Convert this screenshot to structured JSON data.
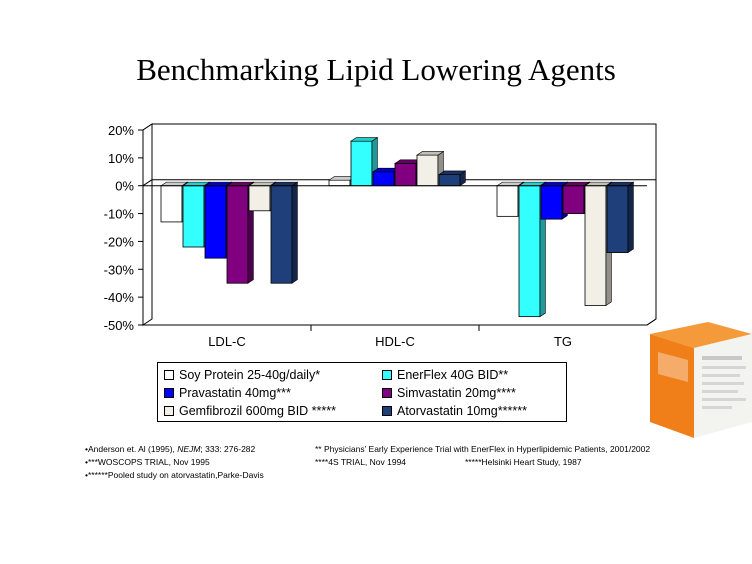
{
  "title": "Benchmarking Lipid Lowering Agents",
  "chart_data": {
    "type": "bar",
    "categories": [
      "LDL-C",
      "HDL-C",
      "TG"
    ],
    "ylim": [
      -50,
      20
    ],
    "yticks": [
      20,
      10,
      0,
      -10,
      -20,
      -30,
      -40,
      -50
    ],
    "ytick_labels": [
      "20%",
      "10%",
      "0%",
      "-10%",
      "-20%",
      "-30%",
      "-40%",
      "-50%"
    ],
    "series": [
      {
        "name": "Soy Protein 25-40g/daily*",
        "color": "#ffffff",
        "values": [
          -13,
          2,
          -11
        ]
      },
      {
        "name": "EnerFlex 40G BID**",
        "color": "#33ffff",
        "values": [
          -22,
          16,
          -47
        ]
      },
      {
        "name": "Pravastatin 40mg***",
        "color": "#0000ff",
        "values": [
          -26,
          5,
          -12
        ]
      },
      {
        "name": "Simvastatin 20mg****",
        "color": "#800080",
        "values": [
          -35,
          8,
          -10
        ]
      },
      {
        "name": "Gemfibrozil 600mg BID *****",
        "color": "#f2f0e6",
        "values": [
          -9,
          11,
          -43
        ]
      },
      {
        "name": "Atorvastatin 10mg******",
        "color": "#1f3f7a",
        "values": [
          -35,
          4,
          -24
        ]
      }
    ]
  },
  "legend": {
    "items": [
      {
        "label": "Soy Protein 25-40g/daily*",
        "color": "#ffffff"
      },
      {
        "label": "EnerFlex 40G BID**",
        "color": "#33ffff"
      },
      {
        "label": "Pravastatin 40mg***",
        "color": "#0000ff"
      },
      {
        "label": "Simvastatin 20mg****",
        "color": "#800080"
      },
      {
        "label": "Gemfibrozil 600mg BID *****",
        "color": "#f2f0e6"
      },
      {
        "label": "Atorvastatin 10mg******",
        "color": "#1f3f7a"
      }
    ]
  },
  "footnotes": {
    "anderson_a": "•Anderson et. Al (1995), ",
    "anderson_journal": "NEJM",
    "anderson_b": "; 333: 276-282",
    "woscops": "•***WOSCOPS TRIAL, Nov 1995",
    "pooled": "•******Pooled  study on atorvastatin,Parke-Davis",
    "physicians": "** Physicians’ Early Experience Trial with EnerFlex in Hyperlipidemic Patients, 2001/2002",
    "four_s": "****4S  TRIAL, Nov 1994",
    "helsinki": "*****Helsinki Heart Study, 1987"
  },
  "product": {
    "icon": "enerflex-product-box",
    "brand_color": "#f07f1a"
  }
}
